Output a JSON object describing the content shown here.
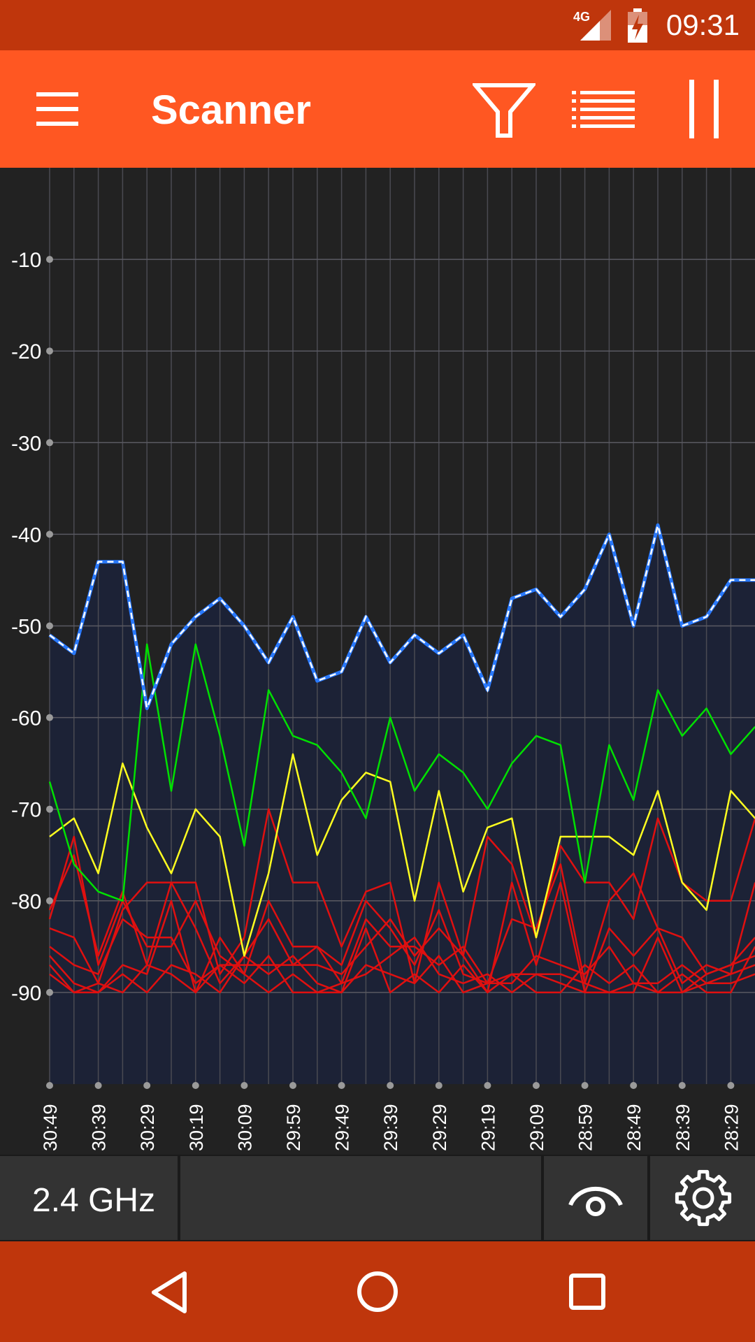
{
  "status_bar": {
    "network": "4G",
    "time": "09:31"
  },
  "app_bar": {
    "title": "Scanner",
    "icons": [
      "menu-icon",
      "filter-icon",
      "list-icon",
      "pause-icon"
    ]
  },
  "bottom_bar": {
    "band": "2.4 GHz",
    "icons": [
      "eye-icon",
      "gear-icon"
    ]
  },
  "nav_bar": {
    "icons": [
      "back-icon",
      "home-icon",
      "recents-icon"
    ]
  },
  "colors": {
    "status_bar": "#bf360c",
    "app_bar": "#ff5722",
    "chart_bg": "#222222",
    "fill": "#1c2236",
    "blue_line": "#2979ff",
    "green": "#00e000",
    "yellow": "#ffff20",
    "red": "#e01010"
  },
  "chart_data": {
    "type": "line",
    "y_ticks": [
      "-10",
      "-20",
      "-30",
      "-40",
      "-50",
      "-60",
      "-70",
      "-80",
      "-90"
    ],
    "x_ticks": [
      "30:49",
      "30:39",
      "30:29",
      "30:19",
      "30:09",
      "29:59",
      "29:49",
      "29:39",
      "29:29",
      "29:19",
      "29:09",
      "28:59",
      "28:49",
      "28:39",
      "28:29"
    ],
    "ylim": [
      -100,
      0
    ],
    "grid": true,
    "series": [
      {
        "color": "#2979ff",
        "style": "dashed-max",
        "values": [
          -51,
          -53,
          -43,
          -43,
          -59,
          -52,
          -49,
          -47,
          -50,
          -54,
          -49,
          -56,
          -55,
          -49,
          -54,
          -51,
          -53,
          -51,
          -57,
          -47,
          -46,
          -49,
          -46,
          -40,
          -50,
          -39,
          -50,
          -49,
          -45,
          -45
        ]
      },
      {
        "color": "#00e000",
        "values": [
          -67,
          -76,
          -79,
          -80,
          -52,
          -68,
          -52,
          -62,
          -74,
          -57,
          -62,
          -63,
          -66,
          -71,
          -60,
          -68,
          -64,
          -66,
          -70,
          -65,
          -62,
          -63,
          -78,
          -63,
          -69,
          -57,
          -62,
          -59,
          -64,
          -61
        ]
      },
      {
        "color": "#ffff20",
        "values": [
          -73,
          -71,
          -77,
          -65,
          -72,
          -77,
          -70,
          -73,
          -86,
          -77,
          -64,
          -75,
          -69,
          -66,
          -67,
          -80,
          -68,
          -79,
          -72,
          -71,
          -84,
          -73,
          -73,
          -73,
          -75,
          -68,
          -78,
          -81,
          -68,
          -71
        ]
      },
      {
        "color": "#e01010",
        "values": [
          -81,
          -75,
          -86,
          -79,
          -87,
          -78,
          -78,
          -88,
          -84,
          -70,
          -78,
          -78,
          -85,
          -79,
          -78,
          -89,
          -78,
          -86,
          -73,
          -76,
          -84,
          -74,
          -78,
          -78,
          -82,
          -71,
          -78,
          -80,
          -80,
          -71
        ]
      },
      {
        "color": "#e01010",
        "values": [
          -82,
          -73,
          -87,
          -80,
          -85,
          -85,
          -80,
          -86,
          -88,
          -80,
          -85,
          -85,
          -87,
          -80,
          -83,
          -87,
          -81,
          -88,
          -89,
          -82,
          -83,
          -76,
          -89,
          -80,
          -77,
          -83,
          -89,
          -87,
          -88,
          -78
        ]
      },
      {
        "color": "#e01010",
        "values": [
          -83,
          -84,
          -89,
          -81,
          -78,
          -78,
          -83,
          -89,
          -86,
          -82,
          -87,
          -87,
          -88,
          -85,
          -82,
          -86,
          -83,
          -86,
          -90,
          -78,
          -87,
          -78,
          -90,
          -83,
          -86,
          -83,
          -84,
          -88,
          -87,
          -84
        ]
      },
      {
        "color": "#e01010",
        "values": [
          -85,
          -87,
          -88,
          -82,
          -84,
          -84,
          -89,
          -87,
          -87,
          -87,
          -87,
          -85,
          -89,
          -82,
          -85,
          -85,
          -87,
          -85,
          -89,
          -89,
          -86,
          -87,
          -88,
          -85,
          -89,
          -89,
          -87,
          -89,
          -88,
          -87
        ]
      },
      {
        "color": "#e01010",
        "values": [
          -86,
          -89,
          -90,
          -87,
          -88,
          -80,
          -90,
          -84,
          -88,
          -90,
          -88,
          -90,
          -89,
          -88,
          -86,
          -84,
          -88,
          -89,
          -88,
          -90,
          -88,
          -88,
          -89,
          -90,
          -89,
          -90,
          -88,
          -90,
          -90,
          -85
        ]
      },
      {
        "color": "#e01010",
        "values": [
          -87,
          -90,
          -90,
          -88,
          -90,
          -87,
          -88,
          -90,
          -86,
          -88,
          -86,
          -89,
          -90,
          -87,
          -88,
          -89,
          -86,
          -90,
          -89,
          -88,
          -88,
          -89,
          -90,
          -90,
          -90,
          -84,
          -90,
          -88,
          -87,
          -86
        ]
      },
      {
        "color": "#e01010",
        "values": [
          -88,
          -90,
          -89,
          -90,
          -87,
          -88,
          -90,
          -87,
          -89,
          -86,
          -90,
          -90,
          -90,
          -83,
          -90,
          -88,
          -90,
          -87,
          -90,
          -88,
          -90,
          -90,
          -87,
          -89,
          -87,
          -90,
          -90,
          -89,
          -89,
          -88
        ]
      }
    ]
  }
}
